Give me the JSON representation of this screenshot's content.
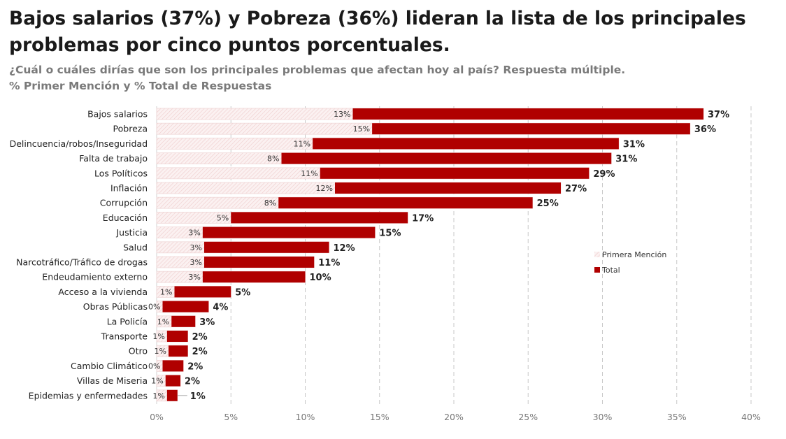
{
  "chart_data": {
    "type": "bar",
    "orientation": "horizontal",
    "title": "Bajos salarios (37%) y Pobreza (36%) lideran la lista de los principales problemas por cinco puntos porcentuales.",
    "subtitle": [
      "¿Cuál o cuáles dirías que son los principales problemas que afectan hoy al país? Respuesta múltiple.",
      "% Primer Mención y % Total de Respuestas"
    ],
    "categories": [
      "Bajos salarios",
      "Pobreza",
      "Delincuencia/robos/Inseguridad",
      "Falta de trabajo",
      "Los Políticos",
      "Inflación",
      "Corrupción",
      "Educación",
      "Justicia",
      "Salud",
      "Narcotráfico/Tráfico de drogas",
      "Endeudamiento externo",
      "Acceso a la vivienda",
      "Obras Públicas",
      "La Policía",
      "Transporte",
      "Otro",
      "Cambio Climático",
      "Villas de Miseria",
      "Epidemias y enfermedades"
    ],
    "series": [
      {
        "name": "Primera Mención",
        "color": "#f6e4e4",
        "values": [
          13.2,
          14.5,
          10.5,
          8.4,
          11,
          12,
          8.2,
          5.0,
          3.1,
          3.2,
          3.2,
          3.1,
          1.2,
          0.4,
          1.0,
          0.7,
          0.8,
          0.4,
          0.6,
          0.7
        ],
        "labels": [
          "13%",
          "15%",
          "11%",
          "8%",
          "11%",
          "12%",
          "8%",
          "5%",
          "3%",
          "3%",
          "3%",
          "3%",
          "1%",
          "0%",
          "1%",
          "1%",
          "1%",
          "0%",
          "1%",
          "1%"
        ]
      },
      {
        "name": "Total",
        "color": "#b00000",
        "values": [
          36.8,
          35.9,
          31.1,
          30.6,
          29.1,
          27.2,
          25.3,
          16.9,
          14.7,
          11.6,
          10.6,
          10.0,
          5.0,
          3.5,
          2.6,
          2.1,
          2.1,
          1.8,
          1.6,
          1.4
        ],
        "labels": [
          "37%",
          "36%",
          "31%",
          "31%",
          "29%",
          "27%",
          "25%",
          "17%",
          "15%",
          "12%",
          "11%",
          "10%",
          "5%",
          "4%",
          "3%",
          "2%",
          "2%",
          "2%",
          "2%",
          "1%"
        ]
      }
    ],
    "xticks": [
      "0%",
      "5%",
      "10%",
      "15%",
      "20%",
      "25%",
      "30%",
      "35%",
      "40%"
    ],
    "xlim": [
      0,
      40
    ],
    "grid": "vertical dashed",
    "legend": "right"
  }
}
